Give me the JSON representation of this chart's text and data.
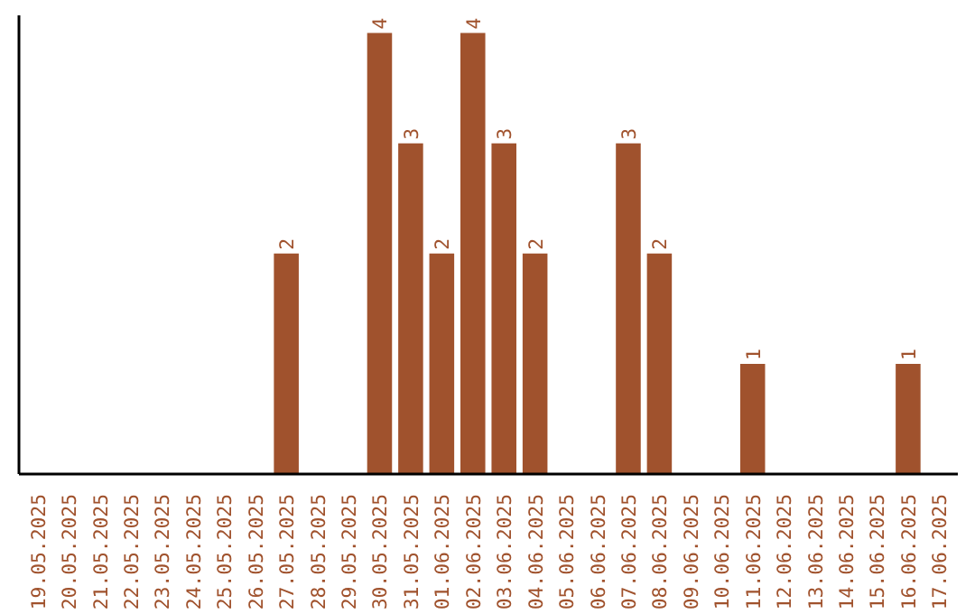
{
  "chart_data": {
    "type": "bar",
    "categories": [
      "19.05.2025",
      "20.05.2025",
      "21.05.2025",
      "22.05.2025",
      "23.05.2025",
      "24.05.2025",
      "25.05.2025",
      "26.05.2025",
      "27.05.2025",
      "28.05.2025",
      "29.05.2025",
      "30.05.2025",
      "31.05.2025",
      "01.06.2025",
      "02.06.2025",
      "03.06.2025",
      "04.06.2025",
      "05.06.2025",
      "06.06.2025",
      "07.06.2025",
      "08.06.2025",
      "09.06.2025",
      "10.06.2025",
      "11.06.2025",
      "12.06.2025",
      "13.06.2025",
      "14.06.2025",
      "15.06.2025",
      "16.06.2025",
      "17.06.2025"
    ],
    "values": [
      0,
      0,
      0,
      0,
      0,
      0,
      0,
      0,
      2,
      0,
      0,
      4,
      3,
      2,
      4,
      3,
      2,
      0,
      0,
      3,
      2,
      0,
      0,
      1,
      0,
      0,
      0,
      0,
      1,
      0
    ],
    "value_labels": [
      null,
      null,
      null,
      null,
      null,
      null,
      null,
      null,
      "2",
      null,
      null,
      "4",
      "3",
      "2",
      "4",
      "3",
      "2",
      null,
      null,
      "3",
      "2",
      null,
      null,
      "1",
      null,
      null,
      null,
      null,
      "1",
      null
    ],
    "color": "#a0522d"
  }
}
